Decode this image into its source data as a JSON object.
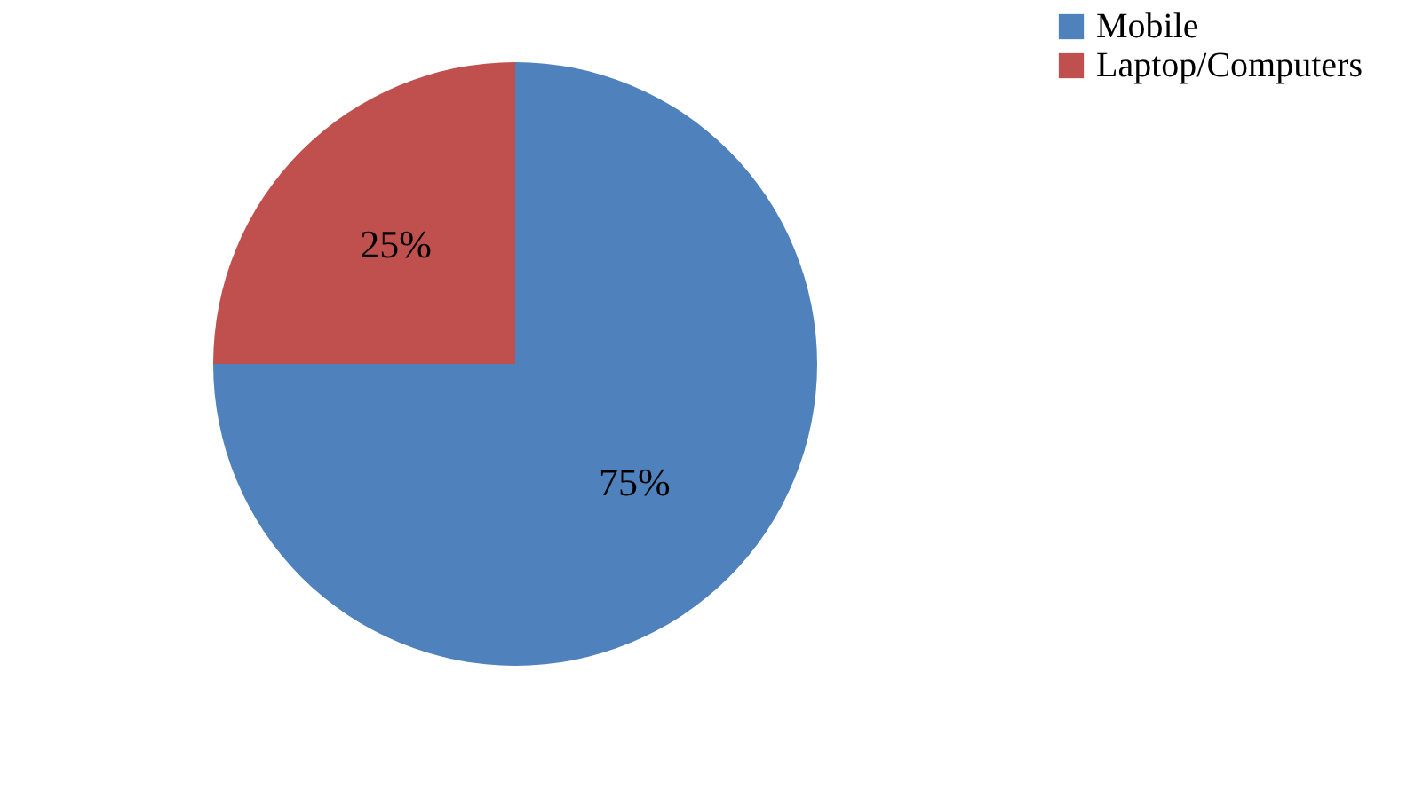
{
  "chart_data": {
    "type": "pie",
    "categories": [
      "Mobile",
      "Laptop/Computers"
    ],
    "values": [
      75,
      25
    ],
    "colors": [
      "#4f81bd",
      "#c0504d"
    ],
    "value_labels": [
      "75%",
      "25%"
    ],
    "legend": "right"
  }
}
